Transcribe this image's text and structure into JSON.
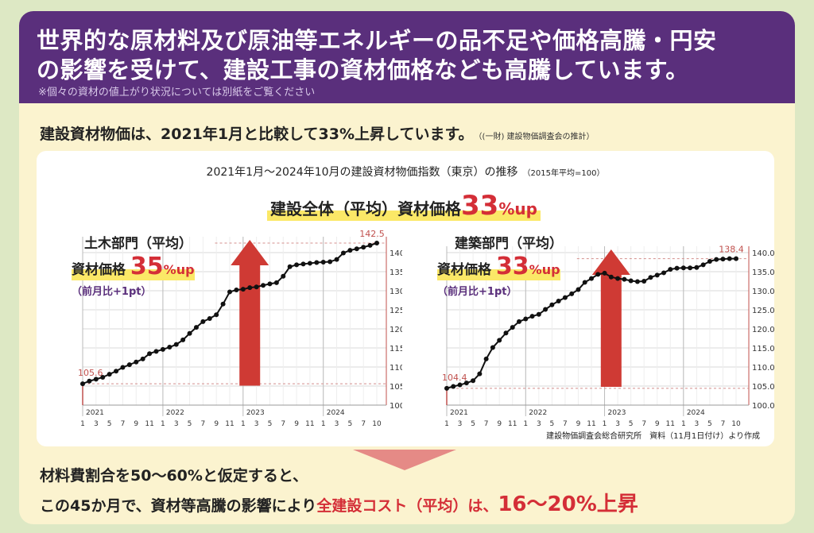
{
  "header": {
    "line1": "世界的な原材料及び原油等エネルギーの品不足や価格高騰・円安",
    "line2": "の影響を受けて、建設工事の資材価格なども高騰しています。",
    "note": "※個々の資材の値上がり状況については別紙をご覧ください"
  },
  "subheading": {
    "main": "建設資材物価は、2021年1月と比較して33%上昇しています。",
    "source_note": "（(一財) 建設物価調査会の推計）"
  },
  "panel": {
    "title": "2021年1月〜2024年10月の建設資材物価指数（東京）の推移",
    "title_small": "（2015年平均=100）",
    "banner": {
      "prefix": "建設全体（平均）資材価格",
      "pct": "33",
      "suffix": "%up"
    },
    "source": "建設物価調査会総合研究所　資料（11月1日付け）より作成"
  },
  "chart_data": [
    {
      "type": "line",
      "title": "土木部門（平均）",
      "label": "資材価格",
      "increase_pct": "35",
      "increase_suffix": "%up",
      "note": "（前月比+1pt）",
      "start_label": "105.6",
      "end_label": "142.5",
      "ylim": [
        100,
        142.5
      ],
      "yticks": [
        "100.0",
        "105.0",
        "110.0",
        "115.0",
        "120.0",
        "125.0",
        "130.0",
        "135.0",
        "140.0"
      ],
      "year_labels": [
        "2021",
        "2022",
        "2023",
        "2024"
      ],
      "month_labels": [
        "1",
        "3",
        "5",
        "7",
        "9",
        "11",
        "1",
        "3",
        "5",
        "7",
        "9",
        "11",
        "1",
        "3",
        "5",
        "7",
        "9",
        "11",
        "1",
        "3",
        "5",
        "7",
        "10"
      ],
      "values": [
        105.6,
        106.3,
        106.8,
        107.3,
        108.1,
        108.9,
        109.9,
        110.6,
        111.3,
        112.1,
        113.5,
        114.1,
        114.6,
        115.2,
        115.9,
        117.1,
        118.8,
        120.4,
        121.9,
        122.7,
        123.7,
        126.5,
        129.7,
        130.2,
        130.4,
        130.8,
        131.0,
        131.4,
        131.8,
        132.1,
        133.8,
        136.3,
        136.8,
        137.0,
        137.2,
        137.4,
        137.5,
        137.6,
        138.2,
        139.9,
        140.6,
        141.0,
        141.4,
        141.9,
        142.5
      ]
    },
    {
      "type": "line",
      "title": "建築部門（平均）",
      "label": "資材価格",
      "increase_pct": "33",
      "increase_suffix": "%up",
      "note": "（前月比+1pt）",
      "start_label": "104.4",
      "end_label": "138.4",
      "ylim": [
        100,
        140
      ],
      "yticks": [
        "100.0",
        "105.0",
        "110.0",
        "115.0",
        "120.0",
        "125.0",
        "130.0",
        "135.0",
        "140.0"
      ],
      "year_labels": [
        "2021",
        "2022",
        "2023",
        "2024"
      ],
      "month_labels": [
        "1",
        "3",
        "5",
        "7",
        "9",
        "11",
        "1",
        "3",
        "5",
        "7",
        "9",
        "11",
        "1",
        "3",
        "5",
        "7",
        "9",
        "11",
        "1",
        "3",
        "5",
        "7",
        "10"
      ],
      "values": [
        104.4,
        104.9,
        105.3,
        105.8,
        106.4,
        108.2,
        112.1,
        115.1,
        117.0,
        118.9,
        120.4,
        121.9,
        122.6,
        123.3,
        123.8,
        125.1,
        126.3,
        127.3,
        128.2,
        129.2,
        130.3,
        132.2,
        133.2,
        134.3,
        134.6,
        133.6,
        133.2,
        133.0,
        132.6,
        132.4,
        132.5,
        133.5,
        134.1,
        134.7,
        135.6,
        135.9,
        136.0,
        136.0,
        136.1,
        136.8,
        137.7,
        138.2,
        138.3,
        138.4,
        138.4
      ]
    }
  ],
  "conclusion": {
    "line1": "材料費割合を50〜60%と仮定すると、",
    "line2_a": "この45か月で、資材等高騰の影響により",
    "line2_red": "全建設コスト（平均）は、",
    "line2_big": "16〜20%上昇"
  },
  "colors": {
    "purple": "#5a2f7c",
    "red": "#d42e37",
    "yellow": "#fbe867",
    "cream": "#fbf3cf",
    "bg": "#dde8c4"
  }
}
